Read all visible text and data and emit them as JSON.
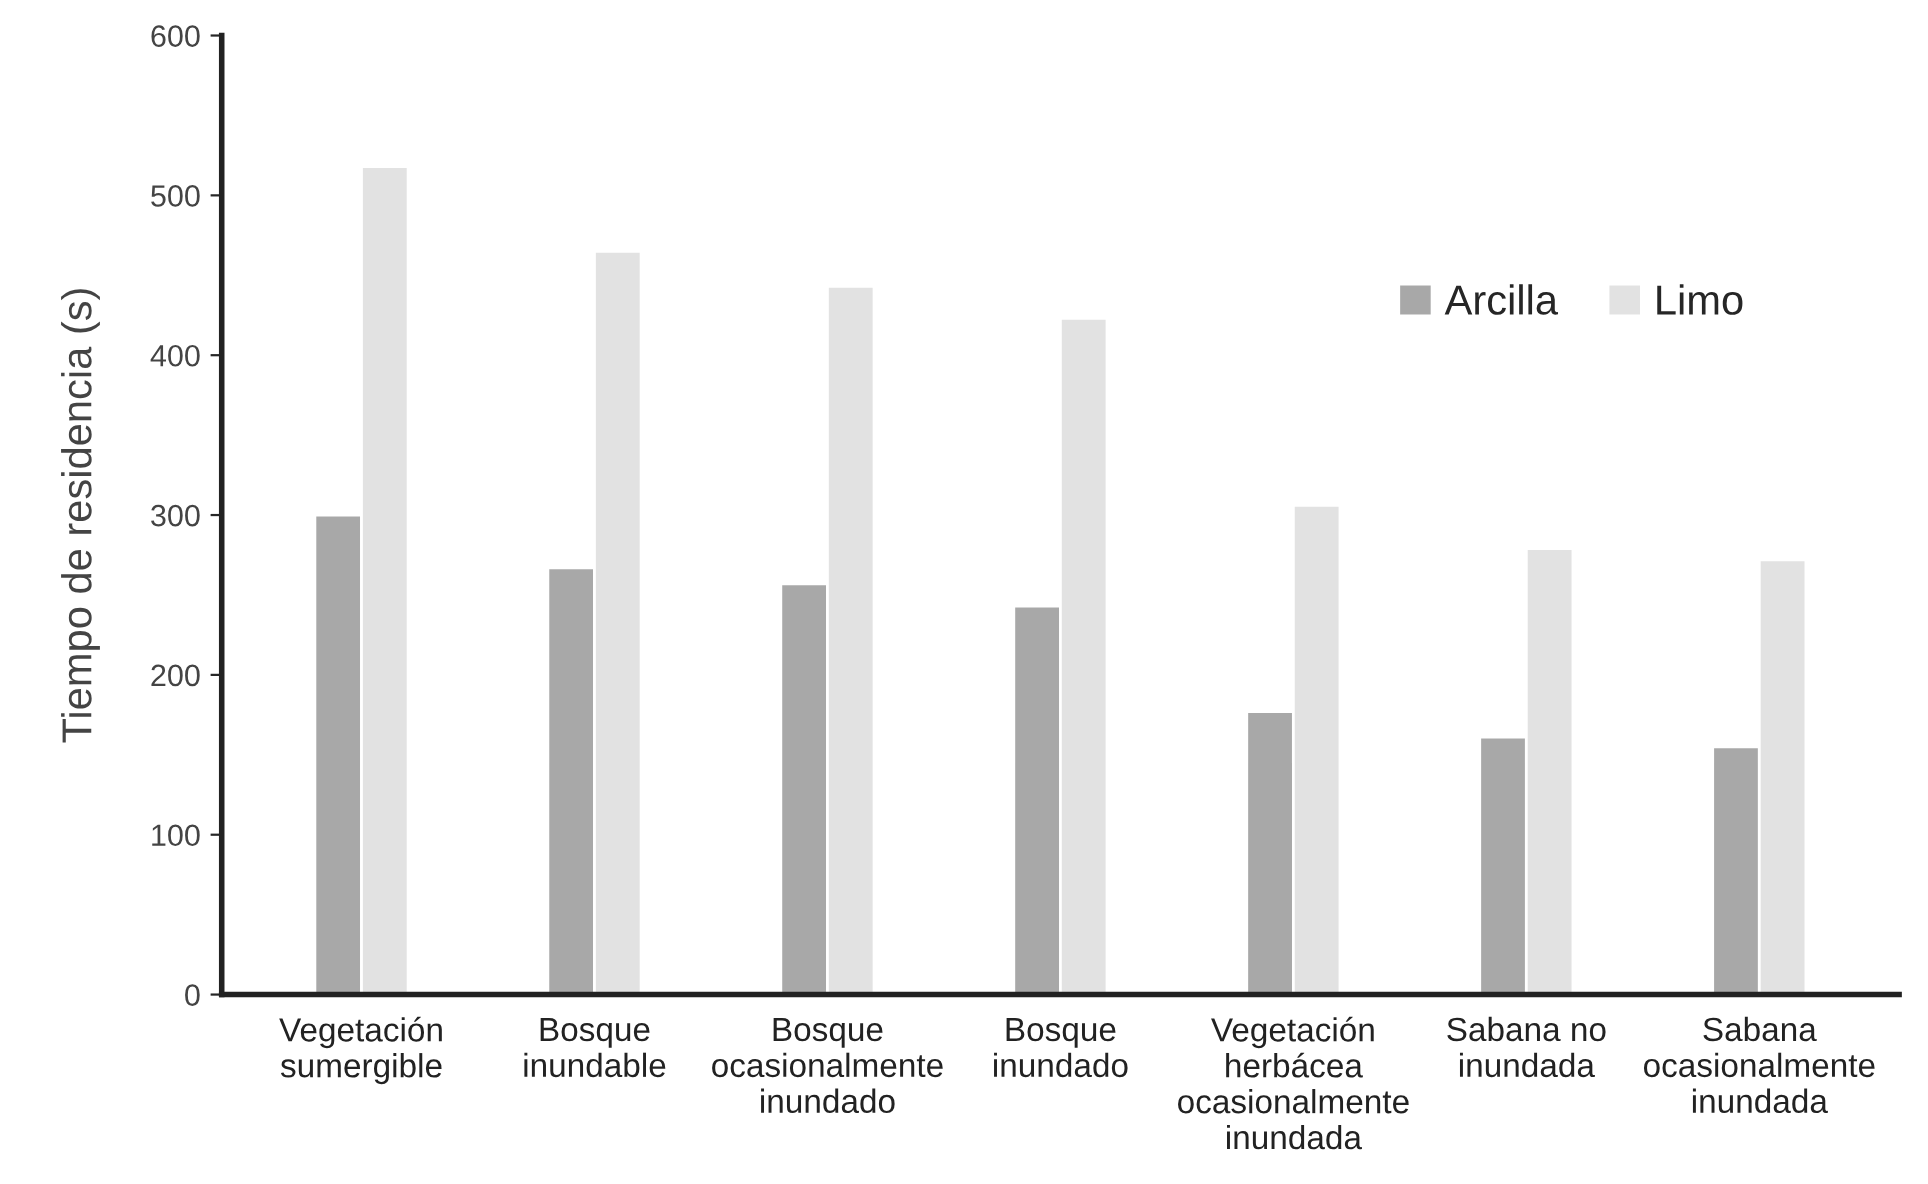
{
  "chart_data": {
    "type": "bar",
    "ylabel": "Tiempo de residencia (s)",
    "categories": [
      "Vegetación\nsumergible",
      "Bosque\ninundable",
      "Bosque\nocasionalmente\ninundado",
      "Bosque\ninundado",
      "Vegetación\nherbácea\nocasionalmente\ninundada",
      "Sabana no\ninundada",
      "Sabana\nocasionalmente\ninundada"
    ],
    "series": [
      {
        "name": "Arcilla",
        "color": "#a8a8a8",
        "values": [
          300,
          267,
          257,
          243,
          177,
          161,
          155
        ]
      },
      {
        "name": "Limo",
        "color": "#e2e2e2",
        "values": [
          518,
          465,
          443,
          423,
          306,
          279,
          272
        ]
      }
    ],
    "ylim": [
      0,
      600
    ],
    "yticks": [
      0,
      100,
      200,
      300,
      400,
      500,
      600
    ],
    "grid": false,
    "legend": "top right"
  }
}
